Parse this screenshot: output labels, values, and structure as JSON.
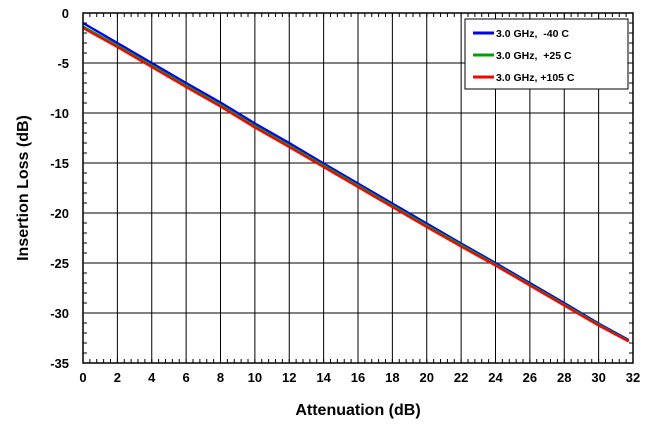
{
  "chart_data": {
    "type": "line",
    "title": "",
    "xlabel": "Attenuation (dB)",
    "ylabel": "Insertion Loss (dB)",
    "xlim": [
      0,
      32
    ],
    "ylim": [
      -35,
      0
    ],
    "xticks": [
      0,
      2,
      4,
      6,
      8,
      10,
      12,
      14,
      16,
      18,
      20,
      22,
      24,
      26,
      28,
      30,
      32
    ],
    "yticks": [
      0,
      -5,
      -10,
      -15,
      -20,
      -25,
      -30,
      -35
    ],
    "grid": true,
    "legend_position": "top-right",
    "series": [
      {
        "name": "3.0 GHz,  -40 C",
        "color": "#0000ff",
        "x": [
          0,
          2,
          4,
          6,
          8,
          10,
          12,
          14,
          16,
          18,
          20,
          22,
          24,
          26,
          28,
          30,
          31.75
        ],
        "y": [
          -1.0,
          -3.0,
          -5.0,
          -7.0,
          -8.95,
          -11.05,
          -13.0,
          -15.05,
          -17.05,
          -19.05,
          -21.05,
          -23.05,
          -25.0,
          -27.0,
          -29.0,
          -31.05,
          -32.7
        ]
      },
      {
        "name": "3.0 GHz,  +25 C",
        "color": "#00a000",
        "x": [
          0,
          2,
          4,
          6,
          8,
          10,
          12,
          14,
          16,
          18,
          20,
          22,
          24,
          26,
          28,
          30,
          31.75
        ],
        "y": [
          -1.35,
          -3.25,
          -5.25,
          -7.25,
          -9.2,
          -11.3,
          -13.25,
          -15.25,
          -17.25,
          -19.25,
          -21.25,
          -23.2,
          -25.15,
          -27.15,
          -29.15,
          -31.15,
          -32.8
        ]
      },
      {
        "name": "3.0 GHz, +105 C",
        "color": "#ff0000",
        "x": [
          0,
          2,
          4,
          6,
          8,
          10,
          12,
          14,
          16,
          18,
          20,
          22,
          24,
          26,
          28,
          30,
          31.75
        ],
        "y": [
          -1.5,
          -3.4,
          -5.4,
          -7.4,
          -9.35,
          -11.45,
          -13.4,
          -15.4,
          -17.4,
          -19.4,
          -21.4,
          -23.35,
          -25.25,
          -27.25,
          -29.25,
          -31.25,
          -32.85
        ]
      }
    ]
  }
}
